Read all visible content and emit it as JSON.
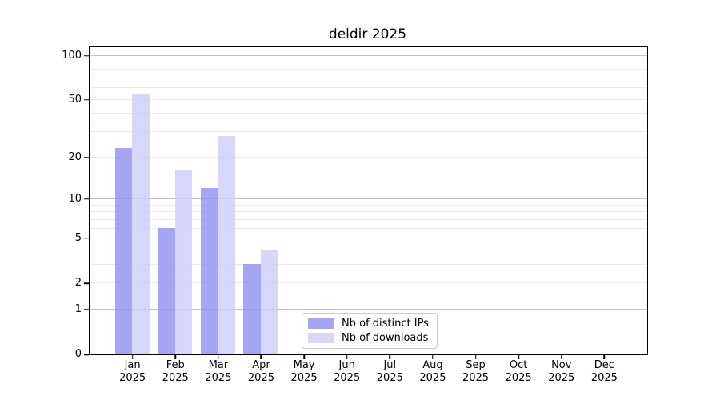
{
  "chart_data": {
    "type": "bar",
    "title": "deldir 2025",
    "categories": [
      "Jan 2025",
      "Feb 2025",
      "Mar 2025",
      "Apr 2025",
      "May 2025",
      "Jun 2025",
      "Jul 2025",
      "Aug 2025",
      "Sep 2025",
      "Oct 2025",
      "Nov 2025",
      "Dec 2025"
    ],
    "series": [
      {
        "name": "Nb of distinct IPs",
        "color": "rgba(143,143,240,0.8)",
        "values": [
          23,
          6,
          12,
          3,
          0,
          0,
          0,
          0,
          0,
          0,
          0,
          0
        ]
      },
      {
        "name": "Nb of downloads",
        "color": "rgba(205,205,248,0.8)",
        "values": [
          55,
          16,
          28,
          4,
          0,
          0,
          0,
          0,
          0,
          0,
          0,
          0
        ]
      }
    ],
    "yscale": "log10(1+x)",
    "yticks": [
      0,
      1,
      2,
      5,
      10,
      20,
      50,
      100
    ],
    "grid_major": [
      1,
      10,
      100
    ],
    "ylim": [
      0,
      114
    ],
    "grid": true,
    "legend_position": "lower center",
    "colors": {
      "grid_major": "#c3c3c3",
      "grid_minor": "#eaeaea",
      "spine": "#000000",
      "text": "#000000"
    }
  }
}
